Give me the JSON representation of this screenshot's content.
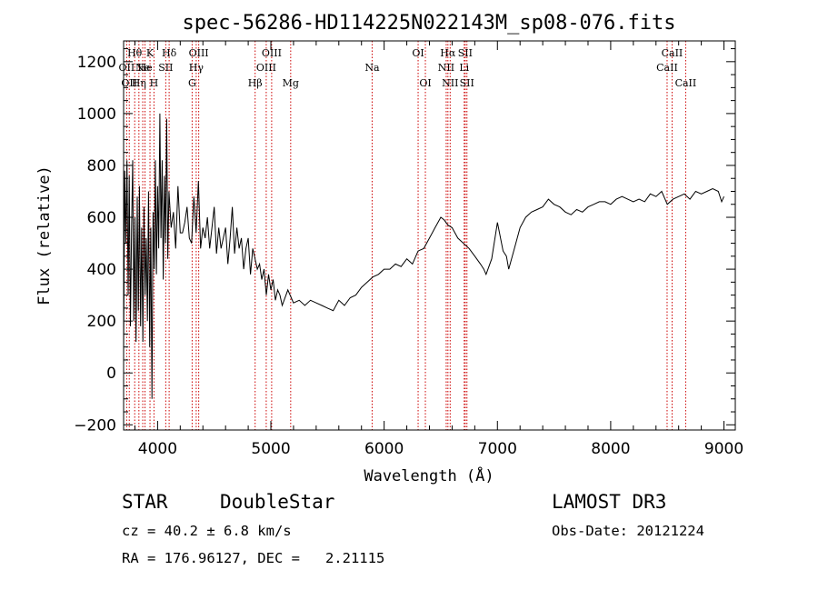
{
  "chart_data": {
    "type": "line",
    "title": "spec-56286-HD114225N022143M_sp08-076.fits",
    "xlabel": "Wavelength (Å)",
    "ylabel": "Flux (relative)",
    "xlim": [
      3700,
      9100
    ],
    "ylim": [
      -220,
      1280
    ],
    "xticks": [
      4000,
      5000,
      6000,
      7000,
      8000,
      9000
    ],
    "yticks": [
      -200,
      0,
      200,
      400,
      600,
      800,
      1000,
      1200
    ],
    "grid": false,
    "series": [
      {
        "x": [
          3700,
          3710,
          3720,
          3730,
          3740,
          3750,
          3760,
          3770,
          3780,
          3790,
          3800,
          3810,
          3820,
          3830,
          3840,
          3850,
          3860,
          3870,
          3880,
          3890,
          3900,
          3910,
          3920,
          3930,
          3940,
          3950,
          3960,
          3970,
          3980,
          3990,
          4000,
          4010,
          4020,
          4030,
          4040,
          4050,
          4060,
          4070,
          4080,
          4090,
          4100,
          4120,
          4140,
          4160,
          4180,
          4200,
          4220,
          4240,
          4260,
          4280,
          4300,
          4320,
          4340,
          4360,
          4380,
          4400,
          4420,
          4440,
          4460,
          4480,
          4500,
          4520,
          4540,
          4560,
          4580,
          4600,
          4620,
          4640,
          4660,
          4680,
          4700,
          4720,
          4740,
          4760,
          4780,
          4800,
          4820,
          4840,
          4860,
          4880,
          4900,
          4920,
          4940,
          4960,
          4980,
          5000,
          5020,
          5040,
          5060,
          5080,
          5100,
          5150,
          5200,
          5250,
          5300,
          5350,
          5400,
          5450,
          5500,
          5550,
          5600,
          5650,
          5700,
          5750,
          5800,
          5850,
          5900,
          5950,
          6000,
          6050,
          6100,
          6150,
          6200,
          6250,
          6300,
          6350,
          6400,
          6450,
          6500,
          6530,
          6563,
          6600,
          6650,
          6700,
          6750,
          6800,
          6850,
          6880,
          6900,
          6950,
          7000,
          7050,
          7080,
          7100,
          7150,
          7200,
          7250,
          7300,
          7350,
          7400,
          7450,
          7500,
          7550,
          7600,
          7650,
          7700,
          7750,
          7800,
          7850,
          7900,
          7950,
          8000,
          8050,
          8100,
          8150,
          8200,
          8250,
          8300,
          8350,
          8400,
          8450,
          8500,
          8550,
          8600,
          8650,
          8700,
          8750,
          8800,
          8850,
          8900,
          8950,
          8980,
          9000
        ],
        "y": [
          80,
          780,
          500,
          820,
          300,
          760,
          180,
          540,
          820,
          200,
          600,
          120,
          680,
          240,
          720,
          180,
          560,
          120,
          640,
          300,
          520,
          200,
          700,
          100,
          560,
          -100,
          620,
          400,
          820,
          380,
          720,
          480,
          1000,
          520,
          820,
          360,
          760,
          500,
          980,
          440,
          700,
          560,
          620,
          480,
          720,
          540,
          540,
          580,
          640,
          520,
          500,
          680,
          540,
          740,
          480,
          560,
          520,
          600,
          480,
          560,
          640,
          460,
          560,
          480,
          520,
          560,
          420,
          520,
          640,
          460,
          560,
          480,
          520,
          400,
          480,
          520,
          380,
          480,
          440,
          400,
          420,
          360,
          400,
          300,
          380,
          320,
          360,
          280,
          320,
          300,
          260,
          320,
          270,
          280,
          260,
          280,
          270,
          260,
          250,
          240,
          280,
          260,
          290,
          300,
          330,
          350,
          370,
          380,
          400,
          400,
          420,
          410,
          440,
          420,
          470,
          480,
          520,
          560,
          600,
          590,
          570,
          560,
          520,
          500,
          480,
          450,
          420,
          400,
          380,
          440,
          580,
          470,
          450,
          400,
          480,
          560,
          600,
          620,
          630,
          640,
          670,
          650,
          640,
          620,
          610,
          630,
          620,
          640,
          650,
          660,
          660,
          650,
          670,
          680,
          670,
          660,
          670,
          660,
          690,
          680,
          700,
          650,
          670,
          680,
          690,
          670,
          700,
          690,
          700,
          710,
          700,
          660,
          680
        ]
      }
    ],
    "line_markers": [
      {
        "x": 3727,
        "label": "OII",
        "row": 2
      },
      {
        "x": 3750,
        "label": "OII",
        "row": 3
      },
      {
        "x": 3798,
        "label": "Hθ",
        "row": 1
      },
      {
        "x": 3835,
        "label": "Hη",
        "row": 3
      },
      {
        "x": 3869,
        "label": "Ne",
        "row": 2
      },
      {
        "x": 3889,
        "label": "He",
        "row": 2
      },
      {
        "x": 3933,
        "label": "K",
        "row": 1
      },
      {
        "x": 3968,
        "label": "H",
        "row": 3
      },
      {
        "x": 4072,
        "label": "SII",
        "row": 2
      },
      {
        "x": 4102,
        "label": "Hδ",
        "row": 1
      },
      {
        "x": 4305,
        "label": "G",
        "row": 3
      },
      {
        "x": 4341,
        "label": "Hγ",
        "row": 2
      },
      {
        "x": 4363,
        "label": "OIII",
        "row": 1
      },
      {
        "x": 4861,
        "label": "Hβ",
        "row": 3
      },
      {
        "x": 4959,
        "label": "OIII",
        "row": 2
      },
      {
        "x": 5007,
        "label": "OIII",
        "row": 1
      },
      {
        "x": 5175,
        "label": "Mg",
        "row": 3
      },
      {
        "x": 5894,
        "label": "Na",
        "row": 2
      },
      {
        "x": 6300,
        "label": "OI",
        "row": 1
      },
      {
        "x": 6364,
        "label": "OI",
        "row": 3
      },
      {
        "x": 6548,
        "label": "NII",
        "row": 2
      },
      {
        "x": 6563,
        "label": "Hα",
        "row": 1
      },
      {
        "x": 6583,
        "label": "NII",
        "row": 3
      },
      {
        "x": 6707,
        "label": "Li",
        "row": 2
      },
      {
        "x": 6716,
        "label": "SII",
        "row": 1
      },
      {
        "x": 6731,
        "label": "SII",
        "row": 3
      },
      {
        "x": 8498,
        "label": "CaII",
        "row": 2
      },
      {
        "x": 8542,
        "label": "CaII",
        "row": 1
      },
      {
        "x": 8662,
        "label": "CaII",
        "row": 3
      }
    ]
  },
  "info": {
    "class": "STAR",
    "subclass": "DoubleStar",
    "survey": "LAMOST DR3",
    "cz": "cz = 40.2 ± 6.8 km/s",
    "obs_date": "Obs-Date: 20121224",
    "coords": "RA = 176.96127, DEC =   2.21115"
  },
  "colors": {
    "line": "#000000",
    "marker": "#cc0000"
  }
}
